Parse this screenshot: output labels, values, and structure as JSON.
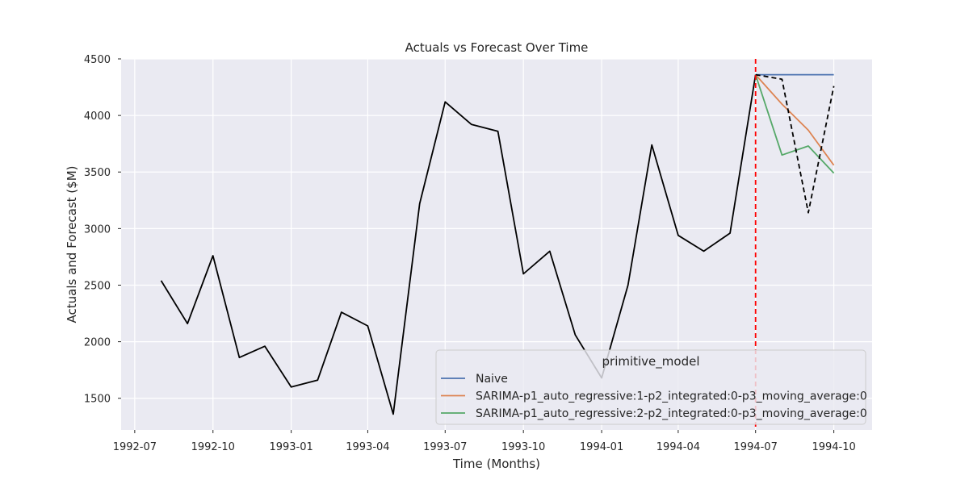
{
  "chart_data": {
    "type": "line",
    "title": "Actuals vs Forecast Over Time",
    "xlabel": "Time (Months)",
    "ylabel": "Actuals and Forecast ($M)",
    "xlim": [
      "1992-06-15",
      "1994-11-15"
    ],
    "ylim": [
      1220,
      4500
    ],
    "x_ticks": [
      "1992-07",
      "1992-10",
      "1993-01",
      "1993-04",
      "1993-07",
      "1993-10",
      "1994-01",
      "1994-04",
      "1994-07",
      "1994-10"
    ],
    "y_ticks": [
      1500,
      2000,
      2500,
      3000,
      3500,
      4000,
      4500
    ],
    "grid": true,
    "forecast_start": "1994-07",
    "colors": {
      "background": "#eaeaf2",
      "grid": "#ffffff",
      "actuals": "#000000",
      "forecast_start_line": "#ff0000"
    },
    "actuals": {
      "x": [
        "1992-08",
        "1992-09",
        "1992-10",
        "1992-11",
        "1992-12",
        "1993-01",
        "1993-02",
        "1993-03",
        "1993-04",
        "1993-05",
        "1993-06",
        "1993-07",
        "1993-08",
        "1993-09",
        "1993-10",
        "1993-11",
        "1993-12",
        "1994-01",
        "1994-02",
        "1994-03",
        "1994-04",
        "1994-05",
        "1994-06",
        "1994-07"
      ],
      "values": [
        2540,
        2160,
        2760,
        1860,
        1960,
        1600,
        1660,
        2260,
        2140,
        1360,
        3220,
        4120,
        3920,
        3860,
        2600,
        2800,
        2060,
        1680,
        2500,
        3740,
        2940,
        2800,
        2960,
        4360
      ]
    },
    "actuals_holdout": {
      "x": [
        "1994-07",
        "1994-08",
        "1994-09",
        "1994-10"
      ],
      "values": [
        4360,
        4320,
        3140,
        4260
      ]
    },
    "legend": {
      "title": "primitive_model",
      "position": "lower-right"
    },
    "series": [
      {
        "name": "Naive",
        "color": "#4c72b0",
        "x": [
          "1994-07",
          "1994-08",
          "1994-09",
          "1994-10"
        ],
        "values": [
          4360,
          4360,
          4360,
          4360
        ]
      },
      {
        "name": "SARIMA-p1_auto_regressive:1-p2_integrated:0-p3_moving_average:0",
        "color": "#dd8452",
        "x": [
          "1994-07",
          "1994-08",
          "1994-09",
          "1994-10"
        ],
        "values": [
          4360,
          4100,
          3870,
          3560
        ]
      },
      {
        "name": "SARIMA-p1_auto_regressive:2-p2_integrated:0-p3_moving_average:0",
        "color": "#55a868",
        "x": [
          "1994-07",
          "1994-08",
          "1994-09",
          "1994-10"
        ],
        "values": [
          4360,
          3650,
          3730,
          3490
        ]
      }
    ]
  }
}
